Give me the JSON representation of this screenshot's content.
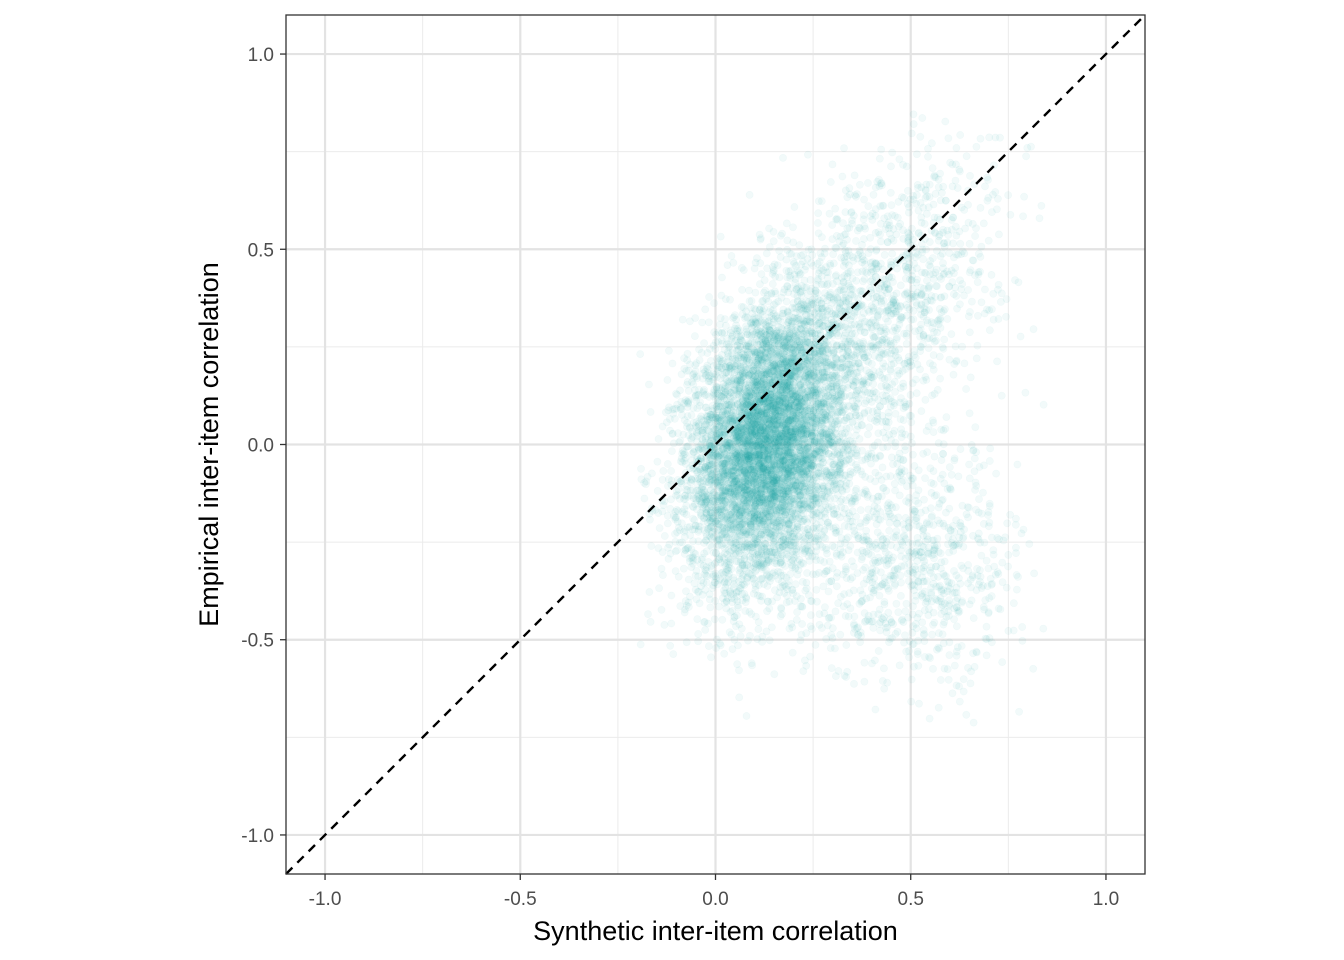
{
  "chart_data": {
    "type": "scatter",
    "title": "",
    "xlabel": "Synthetic inter-item correlation",
    "ylabel": "Empirical inter-item correlation",
    "xlim": [
      -1.1,
      1.1
    ],
    "ylim": [
      -1.1,
      1.1
    ],
    "x_ticks": [
      -1.0,
      -0.5,
      0.0,
      0.5,
      1.0
    ],
    "y_ticks": [
      -1.0,
      -0.5,
      0.0,
      0.5,
      1.0
    ],
    "x_tick_labels": [
      "-1.0",
      "-0.5",
      "0.0",
      "0.5",
      "1.0"
    ],
    "y_tick_labels": [
      "-1.0",
      "-0.5",
      "0.0",
      "0.5",
      "1.0"
    ],
    "grid": true,
    "reference_line": {
      "type": "identity",
      "style": "dashed",
      "color": "#000000"
    },
    "point_color": "#2aa6a6",
    "point_alpha": 0.06,
    "clusters": [
      {
        "x_mean": 0.13,
        "y_mean": 0.0,
        "x_sd": 0.1,
        "y_sd": 0.18,
        "rho": 0.25,
        "share": 0.72
      },
      {
        "x_mean": 0.38,
        "y_mean": 0.3,
        "x_sd": 0.17,
        "y_sd": 0.22,
        "rho": 0.55,
        "share": 0.18
      },
      {
        "x_mean": 0.5,
        "y_mean": -0.3,
        "x_sd": 0.14,
        "y_sd": 0.16,
        "rho": -0.1,
        "share": 0.1
      }
    ],
    "x_range_observed": [
      -0.2,
      0.85
    ],
    "y_range_observed": [
      -0.72,
      0.85
    ]
  }
}
